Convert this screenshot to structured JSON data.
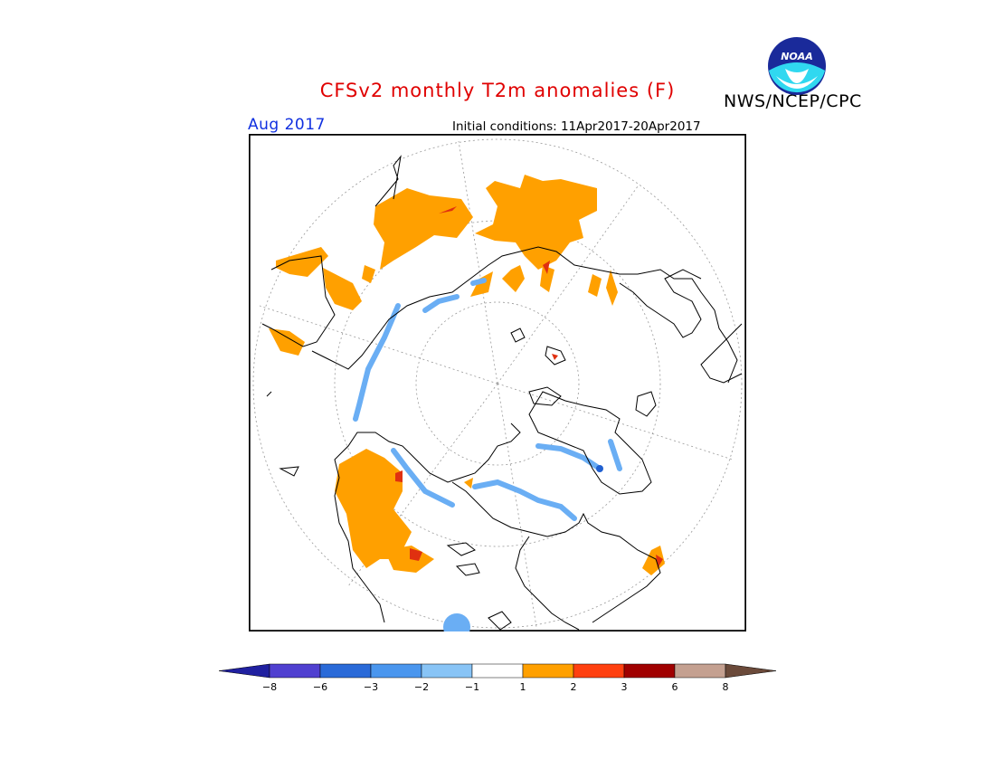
{
  "title": "CFSv2 monthly T2m anomalies (F)",
  "valid_date": "Aug 2017",
  "initial_conditions": "Initial conditions: 11Apr2017-20Apr2017",
  "agency": "NWS/NCEP/CPC",
  "logo_text": "NOAA",
  "colors": {
    "title": "#e00000",
    "date": "#1030e0",
    "warm_1": "#ffa000",
    "warm_2": "#e03010",
    "cool_1": "#8cc8f4",
    "cool_2": "#4a9af0",
    "cool_3": "#2060d0"
  },
  "colorbar": {
    "tick_labels": [
      "−8",
      "−6",
      "−3",
      "−2",
      "−1",
      "1",
      "2",
      "3",
      "6",
      "8"
    ],
    "colors": [
      "#2020a0",
      "#5040d0",
      "#2a6ad8",
      "#4a96ee",
      "#88c4f6",
      "#ffffff",
      "#ffa000",
      "#ff4010",
      "#a00000",
      "#c4a090",
      "#6b4a3a"
    ]
  }
}
